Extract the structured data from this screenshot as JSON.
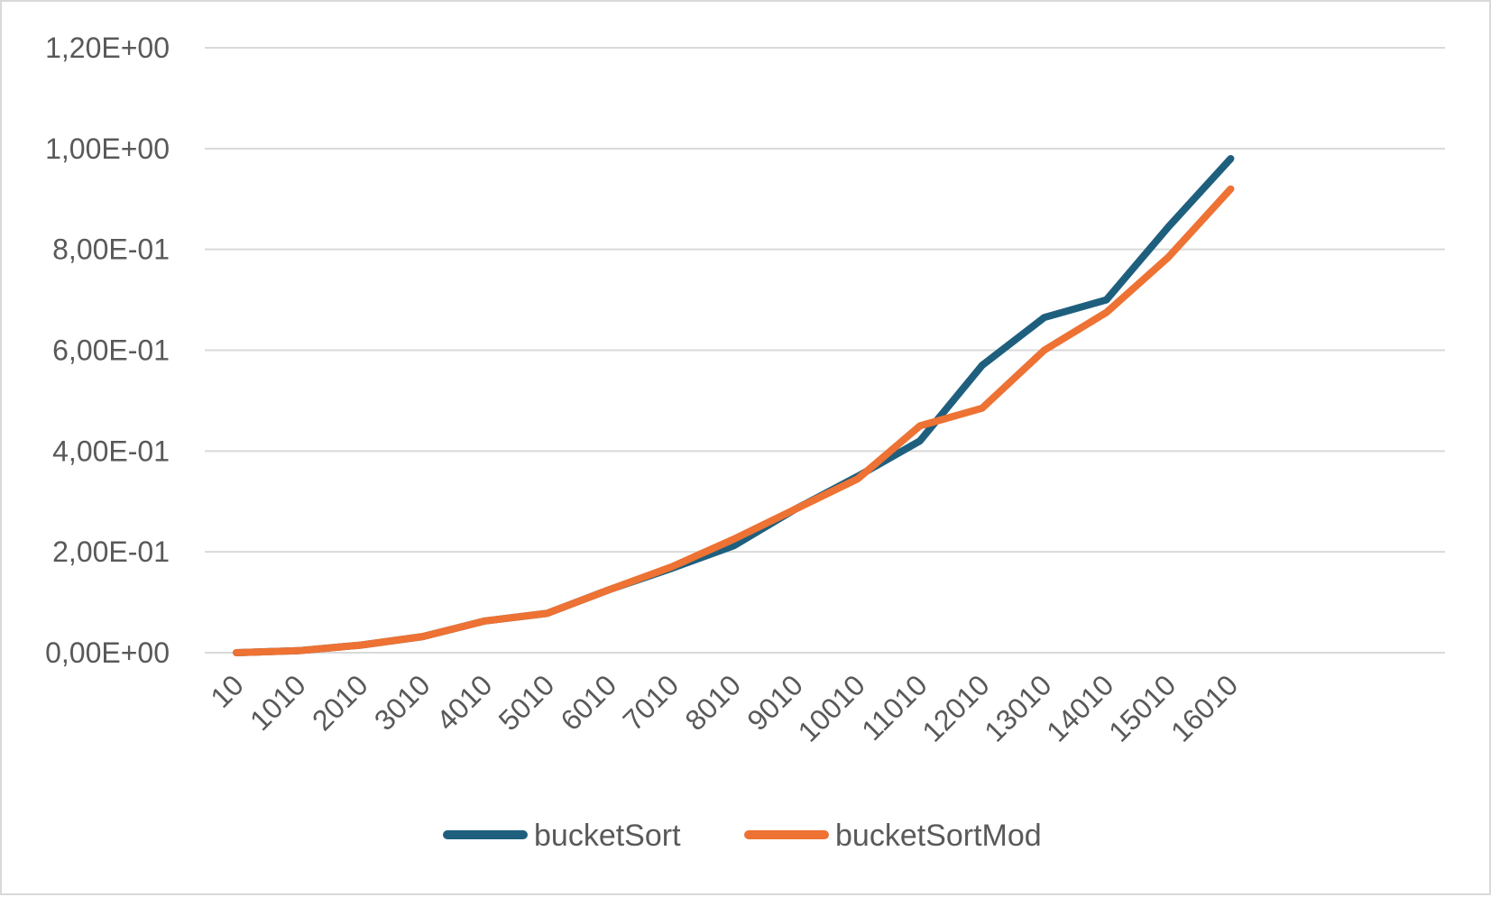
{
  "chart_data": {
    "type": "line",
    "title": "",
    "xlabel": "",
    "ylabel": "",
    "categories": [
      "10",
      "1010",
      "2010",
      "3010",
      "4010",
      "5010",
      "6010",
      "7010",
      "8010",
      "9010",
      "10010",
      "11010",
      "12010",
      "13010",
      "14010",
      "15010",
      "16010"
    ],
    "y_tick_labels": [
      "0,00E+00",
      "2,00E-01",
      "4,00E-01",
      "6,00E-01",
      "8,00E-01",
      "1,00E+00",
      "1,20E+00"
    ],
    "y_tick_values": [
      0,
      0.2,
      0.4,
      0.6,
      0.8,
      1.0,
      1.2
    ],
    "ylim": [
      0,
      1.2
    ],
    "grid": true,
    "legend_position": "bottom",
    "series": [
      {
        "name": "bucketSort",
        "color": "#1f5f7e",
        "values": [
          0.0,
          0.004,
          0.015,
          0.032,
          0.063,
          0.078,
          0.125,
          0.167,
          0.212,
          0.285,
          0.35,
          0.42,
          0.57,
          0.665,
          0.7,
          0.845,
          0.98
        ]
      },
      {
        "name": "bucketSortMod",
        "color": "#ed7233",
        "values": [
          0.0,
          0.004,
          0.015,
          0.032,
          0.063,
          0.078,
          0.125,
          0.17,
          0.225,
          0.285,
          0.345,
          0.45,
          0.485,
          0.6,
          0.675,
          0.785,
          0.92
        ]
      }
    ]
  }
}
